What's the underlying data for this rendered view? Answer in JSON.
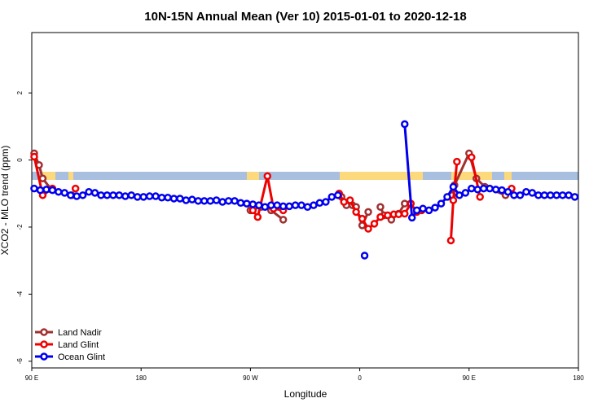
{
  "chart_data": {
    "type": "line",
    "title": "10N-15N Annual Mean (Ver 10)   2015-01-01 to 2020-12-18",
    "x_label": "Longitude",
    "y_label": "XCO2 - MLO trend (ppm)",
    "xlim": [
      90,
      540
    ],
    "xticks": [
      {
        "value": 90,
        "label": "90 E"
      },
      180,
      {
        "value": 270,
        "label": "90 W"
      },
      {
        "value": 360,
        "label": "0"
      },
      {
        "value": 450,
        "label": "90 E"
      },
      {
        "value": 540,
        "label": "180"
      }
    ],
    "ylim": [
      -6.2,
      3.8
    ],
    "yticks": [
      -6,
      -4,
      -2,
      0,
      2
    ],
    "legend": "bottom-left",
    "series": [
      {
        "name": "Land Nadir",
        "color": "#a03030",
        "x": [
          92,
          96,
          99,
          106,
          123,
          null,
          270,
          279,
          287,
          297,
          null,
          345,
          349,
          354,
          357,
          362,
          367,
          null,
          377,
          380,
          386,
          392,
          397,
          402,
          null,
          436,
          438,
          450,
          456,
          463,
          480
        ],
        "values": [
          0.2,
          -0.15,
          -0.55,
          -0.88,
          -1.05,
          null,
          -1.5,
          -1.4,
          -1.5,
          -1.78,
          null,
          -1.1,
          -1.35,
          -1.35,
          -1.4,
          -1.95,
          -1.55,
          null,
          -1.4,
          -1.65,
          -1.78,
          -1.6,
          -1.3,
          -1.3,
          null,
          -1.05,
          -0.75,
          0.2,
          -0.55,
          -0.8,
          -1.05
        ]
      },
      {
        "name": "Land Glint",
        "color": "#ee0000",
        "x": [
          92,
          99,
          107,
          null,
          126,
          null,
          272,
          276,
          284,
          289,
          297,
          null,
          343,
          347,
          352,
          357,
          362,
          367,
          372,
          377,
          383,
          388,
          392,
          397,
          402,
          407,
          411,
          null,
          435,
          437,
          440,
          null,
          452,
          459,
          null,
          485
        ],
        "values": [
          0.1,
          -1.05,
          -0.85,
          null,
          -0.85,
          null,
          -1.5,
          -1.7,
          -0.48,
          -1.45,
          -1.5,
          null,
          -1.0,
          -1.25,
          -1.2,
          -1.55,
          -1.75,
          -2.05,
          -1.9,
          -1.7,
          -1.65,
          -1.62,
          -1.62,
          -1.6,
          -1.3,
          -1.55,
          -1.5,
          null,
          -2.4,
          -1.2,
          -0.05,
          null,
          0.08,
          -1.1,
          null,
          -0.85
        ]
      },
      {
        "name": "Ocean Glint",
        "color": "#0000ee",
        "x": [
          92,
          97,
          102,
          107,
          112,
          117,
          122,
          127,
          132,
          137,
          142,
          147,
          152,
          157,
          162,
          167,
          172,
          177,
          182,
          187,
          192,
          197,
          202,
          207,
          212,
          217,
          222,
          227,
          232,
          237,
          242,
          247,
          252,
          257,
          262,
          267,
          272,
          277,
          282,
          287,
          292,
          297,
          302,
          307,
          312,
          317,
          322,
          327,
          332,
          337,
          342,
          null,
          364,
          null,
          397,
          403,
          407,
          412,
          417,
          422,
          427,
          432,
          437,
          442,
          447,
          452,
          457,
          462,
          467,
          472,
          477,
          482,
          487,
          492,
          497,
          502,
          507,
          512,
          517,
          522,
          527,
          532,
          537
        ],
        "values": [
          -0.85,
          -0.9,
          -0.88,
          -0.9,
          -0.95,
          -0.98,
          -1.05,
          -1.08,
          -1.05,
          -0.95,
          -0.98,
          -1.05,
          -1.05,
          -1.05,
          -1.05,
          -1.08,
          -1.05,
          -1.1,
          -1.1,
          -1.08,
          -1.08,
          -1.12,
          -1.12,
          -1.15,
          -1.15,
          -1.2,
          -1.18,
          -1.22,
          -1.22,
          -1.22,
          -1.2,
          -1.25,
          -1.22,
          -1.22,
          -1.28,
          -1.3,
          -1.32,
          -1.35,
          -1.4,
          -1.35,
          -1.35,
          -1.38,
          -1.38,
          -1.35,
          -1.35,
          -1.4,
          -1.35,
          -1.28,
          -1.25,
          -1.1,
          -1.05,
          null,
          -2.85,
          null,
          1.07,
          -1.72,
          -1.5,
          -1.45,
          -1.5,
          -1.42,
          -1.3,
          -1.1,
          -0.8,
          -1.05,
          -0.98,
          -0.85,
          -0.88,
          -0.85,
          -0.85,
          -0.88,
          -0.9,
          -0.95,
          -1.05,
          -1.05,
          -0.95,
          -0.98,
          -1.05,
          -1.05,
          -1.05,
          -1.05,
          -1.05,
          -1.05,
          -1.1
        ]
      }
    ]
  }
}
